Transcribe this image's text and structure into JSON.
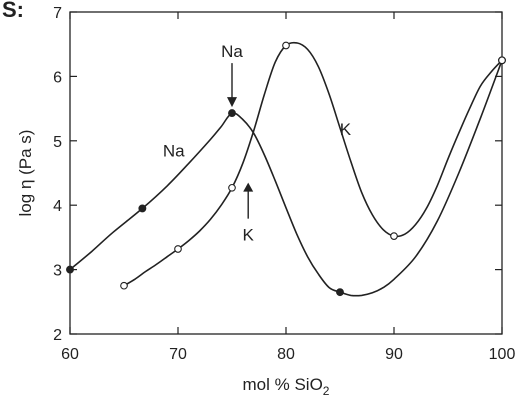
{
  "figure_label": "S:",
  "chart_data": {
    "type": "scatter",
    "xlabel": "mol % SiO",
    "xlabel_subscript": "2",
    "ylabel": "log η (Pa s)",
    "xlim": [
      60,
      100
    ],
    "ylim": [
      2,
      7
    ],
    "xticks": [
      60,
      70,
      80,
      90,
      100
    ],
    "yticks": [
      2,
      3,
      4,
      5,
      6,
      7
    ],
    "grid": false,
    "series": [
      {
        "name": "Na",
        "marker": "filled-circle",
        "x": [
          60,
          66.7,
          75,
          85,
          100
        ],
        "y": [
          3.0,
          3.95,
          5.43,
          2.65,
          6.25
        ],
        "curve_x": [
          60,
          62,
          64,
          66.7,
          69,
          71,
          73,
          74,
          75,
          76,
          77,
          78,
          79,
          80,
          81,
          82,
          83,
          84,
          85,
          86,
          87,
          88,
          89,
          90,
          92,
          94,
          96,
          98,
          100
        ],
        "curve_y": [
          3.0,
          3.28,
          3.58,
          3.95,
          4.3,
          4.65,
          5.02,
          5.22,
          5.43,
          5.33,
          5.12,
          4.78,
          4.38,
          3.96,
          3.55,
          3.2,
          2.93,
          2.72,
          2.65,
          2.6,
          2.6,
          2.64,
          2.72,
          2.85,
          3.2,
          3.75,
          4.5,
          5.35,
          6.25
        ]
      },
      {
        "name": "K",
        "marker": "open-circle",
        "x": [
          65,
          70,
          75,
          80,
          90,
          100
        ],
        "y": [
          2.75,
          3.32,
          4.27,
          6.48,
          3.52,
          6.25
        ],
        "curve_x": [
          65,
          66,
          67,
          68,
          69,
          70,
          71,
          72,
          73,
          74,
          75,
          76,
          77,
          78,
          79,
          80,
          81,
          82,
          83,
          84,
          85,
          86,
          87,
          88,
          89,
          90,
          91,
          92,
          93,
          94,
          95,
          96,
          97,
          98,
          99,
          100
        ],
        "curve_y": [
          2.75,
          2.85,
          2.97,
          3.08,
          3.2,
          3.32,
          3.45,
          3.6,
          3.78,
          4.0,
          4.27,
          4.65,
          5.15,
          5.72,
          6.22,
          6.48,
          6.52,
          6.42,
          6.15,
          5.72,
          5.2,
          4.68,
          4.2,
          3.85,
          3.62,
          3.52,
          3.55,
          3.7,
          3.95,
          4.3,
          4.72,
          5.12,
          5.5,
          5.85,
          6.07,
          6.25
        ]
      }
    ],
    "annotations": [
      {
        "id": "na-arrow",
        "text": "Na",
        "x": 75,
        "y": 5.43,
        "arrow": "down"
      },
      {
        "id": "k-arrow",
        "text": "K",
        "x": 76.5,
        "y": 4.35,
        "arrow": "up"
      },
      {
        "id": "na-curve",
        "text": "Na",
        "x": 69.6,
        "y": 4.85
      },
      {
        "id": "k-curve",
        "text": "K",
        "x": 85.5,
        "y": 5.18
      }
    ]
  }
}
